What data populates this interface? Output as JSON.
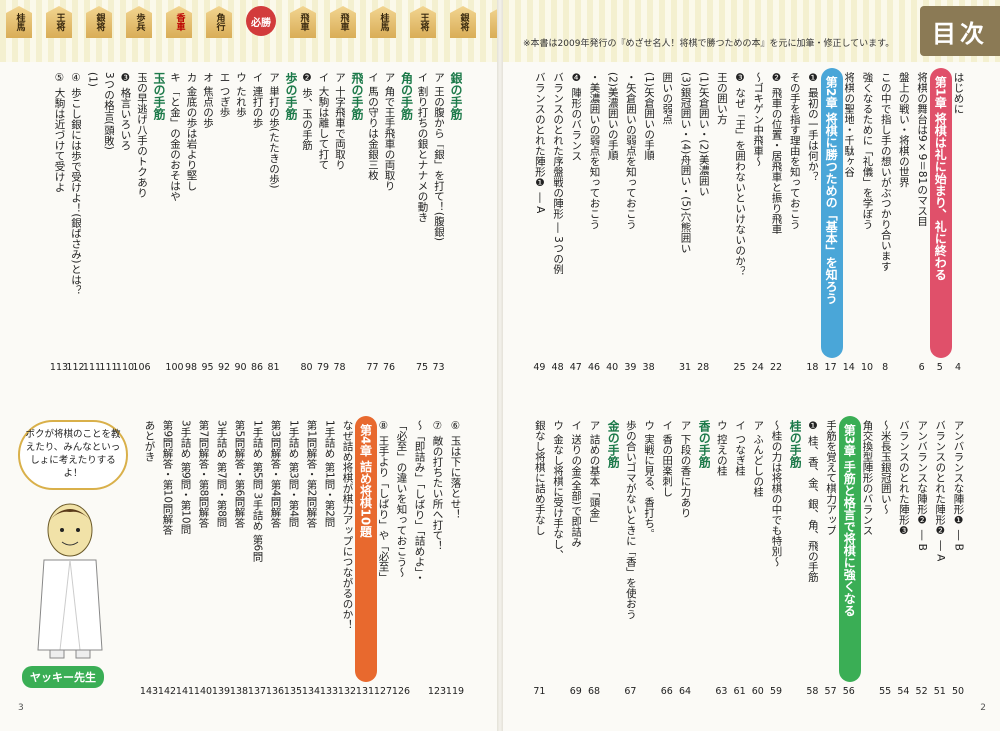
{
  "note": "※本書は2009年発行の『めざせ名人！将棋で勝つための本』を元に加筆・修正しています。",
  "title": "目次",
  "pieces": [
    "桂馬",
    "王将",
    "銀将",
    "歩兵",
    "香車",
    "角行",
    "必勝",
    "飛車",
    "飛車",
    "桂馬",
    "王将",
    "銀将",
    "歩兵"
  ],
  "bubble": "ボクが将棋のことを教えたり、みんなといっしょに考えたりするよ！",
  "teacher_label": "ヤッキー先生",
  "folio_left": "3",
  "folio_right": "2",
  "right_top": [
    {
      "t": "はじめに",
      "p": "4"
    },
    {
      "t": "第1章 将棋は礼に始まり、礼に終わる",
      "p": "5",
      "ch": "red"
    },
    {
      "t": "将棋の舞台は9×9＝81のマス目",
      "p": "6"
    },
    {
      "t": "盤上の戦い・将棋の世界",
      "p": ""
    },
    {
      "t": "この中で指し手の想いがぶつかり合います",
      "p": "8"
    },
    {
      "t": "強くなるために「礼儀」を学ぼう",
      "p": "10"
    },
    {
      "t": "将棋の聖地・千駄ヶ谷",
      "p": "14"
    },
    {
      "t": "第2章 将棋に勝つための「基本」を知ろう",
      "p": "17",
      "ch": "blue"
    },
    {
      "t": "❶ 最初の一手は何か？",
      "p": "18"
    },
    {
      "t": "その手を指す理由を知っておこう",
      "p": ""
    },
    {
      "t": "❷ 飛車の位置・居飛車と振り飛車",
      "p": "22"
    },
    {
      "t": "〜ゴキゲン中飛車〜",
      "p": "24"
    },
    {
      "t": "❸ なぜ「王」を囲わないといけないのか？",
      "p": "25"
    },
    {
      "t": "王の囲い方",
      "p": ""
    },
    {
      "t": "(1)矢倉囲い・(2)美濃囲い",
      "p": "28"
    },
    {
      "t": "(3)銀冠囲い・(4)舟囲い・(5)穴熊囲い",
      "p": "31"
    },
    {
      "t": "囲いの弱点",
      "p": ""
    },
    {
      "t": "(1)矢倉囲いの手順",
      "p": "38"
    },
    {
      "t": "・矢倉囲いの弱点を知っておこう",
      "p": "39"
    },
    {
      "t": "(2)美濃囲いの手順",
      "p": "40"
    },
    {
      "t": "・美濃囲いの弱点を知っておこう",
      "p": "46"
    },
    {
      "t": "❹ 陣形のバランス",
      "p": "47"
    },
    {
      "t": "バランスのとれた序盤戦の陣形 ― 3つの例",
      "p": "48"
    },
    {
      "t": "バランスのとれた陣形❶ ― A",
      "p": "49"
    }
  ],
  "right_bottom": [
    {
      "t": "アンバランスな陣形❶ ― B",
      "p": "50"
    },
    {
      "t": "バランスのとれた陣形❷ ― A",
      "p": "51"
    },
    {
      "t": "アンバランスな陣形❷ ― B",
      "p": "52"
    },
    {
      "t": "バランスのとれた陣形❸",
      "p": "54"
    },
    {
      "t": "〜米長玉銀冠囲い〜",
      "p": "55"
    },
    {
      "t": "角交換型陣形のバランス",
      "p": ""
    },
    {
      "t": "第3章 手筋と格言で将棋に強くなる",
      "p": "56",
      "ch": "green"
    },
    {
      "t": "手筋を覚えて棋力アップ",
      "p": "57"
    },
    {
      "t": "❶ 桂、香、金、銀、角、飛の手筋",
      "p": "58"
    },
    {
      "t": "桂の手筋",
      "p": "",
      "h": true
    },
    {
      "t": "〜桂の力は将棋の中でも特別〜",
      "p": "59"
    },
    {
      "t": "ア ふんどしの桂",
      "p": "60"
    },
    {
      "t": "イ つなぎ桂",
      "p": "61"
    },
    {
      "t": "ウ 控えの桂",
      "p": "63"
    },
    {
      "t": "香の手筋",
      "p": "",
      "h": true
    },
    {
      "t": "ア 下段の香に力あり",
      "p": "64"
    },
    {
      "t": "イ 香の田楽刺し",
      "p": "66"
    },
    {
      "t": "ウ 実戦に見る、香打ち。",
      "p": ""
    },
    {
      "t": "歩の合いゴマがないときに「香」を使おう",
      "p": "67"
    },
    {
      "t": "金の手筋",
      "p": "",
      "h": true
    },
    {
      "t": "ア 詰めの基本「頭金」",
      "p": "68"
    },
    {
      "t": "イ 送りの金(全部)で即詰み",
      "p": "69"
    },
    {
      "t": "ウ 金なし将棋に受け手なし、",
      "p": ""
    },
    {
      "t": "銀なし将棋に詰め手なし",
      "p": "71"
    }
  ],
  "left_top": [
    {
      "t": "銀の手筋",
      "p": "",
      "h": true
    },
    {
      "t": "ア 王の腹から「銀」を打て！(腹銀)",
      "p": "73"
    },
    {
      "t": "イ 割り打ちの銀とナナメの動き",
      "p": "75"
    },
    {
      "t": "角の手筋",
      "p": "",
      "h": true
    },
    {
      "t": "ア 角で王手飛車の両取り",
      "p": "76"
    },
    {
      "t": "イ 馬の守りは金銀三枚",
      "p": "77"
    },
    {
      "t": "飛の手筋",
      "p": "",
      "h": true
    },
    {
      "t": "ア 十字飛車で両取り",
      "p": "78"
    },
    {
      "t": "イ 大駒は離して打て",
      "p": "79"
    },
    {
      "t": "❷ 歩、玉の手筋",
      "p": "80"
    },
    {
      "t": "歩の手筋",
      "p": "",
      "h": true
    },
    {
      "t": "ア 単打の歩(たたきの歩)",
      "p": "81"
    },
    {
      "t": "イ 連打の歩",
      "p": "86"
    },
    {
      "t": "ウ たれ歩",
      "p": "90"
    },
    {
      "t": "エ つぎ歩",
      "p": "92"
    },
    {
      "t": "オ 焦点の歩",
      "p": "95"
    },
    {
      "t": "カ 金底の歩は岩より堅し",
      "p": "98"
    },
    {
      "t": "キ 「と金」の金のおそはや",
      "p": "100"
    },
    {
      "t": "玉の手筋",
      "p": "",
      "h": true
    },
    {
      "t": "玉の早逃げ八手のトクあり",
      "p": "106"
    },
    {
      "t": "❸ 格言いろいろ",
      "p": "110"
    },
    {
      "t": "3つの格言(頭敗)",
      "p": "111"
    },
    {
      "t": "(1)",
      "p": "111"
    },
    {
      "t": "④ 歩こし銀には歩で受けよ！(銀ばさみ)とは？",
      "p": "112"
    },
    {
      "t": "⑤ 大駒は近づけて受けよ",
      "p": "113"
    }
  ],
  "left_bottom": [
    {
      "t": "⑥ 玉は下に落とせ！",
      "p": "119"
    },
    {
      "t": "⑦ 敵の打ちたい所へ打て！",
      "p": "123"
    },
    {
      "t": "〜「即詰み」「しばり」「詰めよ」・",
      "p": ""
    },
    {
      "t": "「必至」の違いを知っておこう〜",
      "p": "126"
    },
    {
      "t": "⑧ 王手より「しばり」や「必至」",
      "p": "127"
    },
    {
      "t": "第4章 詰め将棋10題",
      "p": "131",
      "ch": "orange"
    },
    {
      "t": "なぜ詰め将棋が棋力アップにつながるのか！",
      "p": "132"
    },
    {
      "t": "1手詰め 第1問・第2問",
      "p": "133"
    },
    {
      "t": "第1問解答・第2問解答",
      "p": "134"
    },
    {
      "t": "1手詰め 第3問・第4問",
      "p": "135"
    },
    {
      "t": "第3問解答・第4問解答",
      "p": "136"
    },
    {
      "t": "1手詰め 第5問 3手詰め 第6問",
      "p": "137"
    },
    {
      "t": "第5問解答・第6問解答",
      "p": "138"
    },
    {
      "t": "3手詰め 第7問・第8問",
      "p": "139"
    },
    {
      "t": "第7問解答・第8問解答",
      "p": "140"
    },
    {
      "t": "3手詰め 第9問・第10問",
      "p": "141"
    },
    {
      "t": "第9問解答・第10問解答",
      "p": "142"
    },
    {
      "t": "あとがき",
      "p": "143"
    }
  ]
}
